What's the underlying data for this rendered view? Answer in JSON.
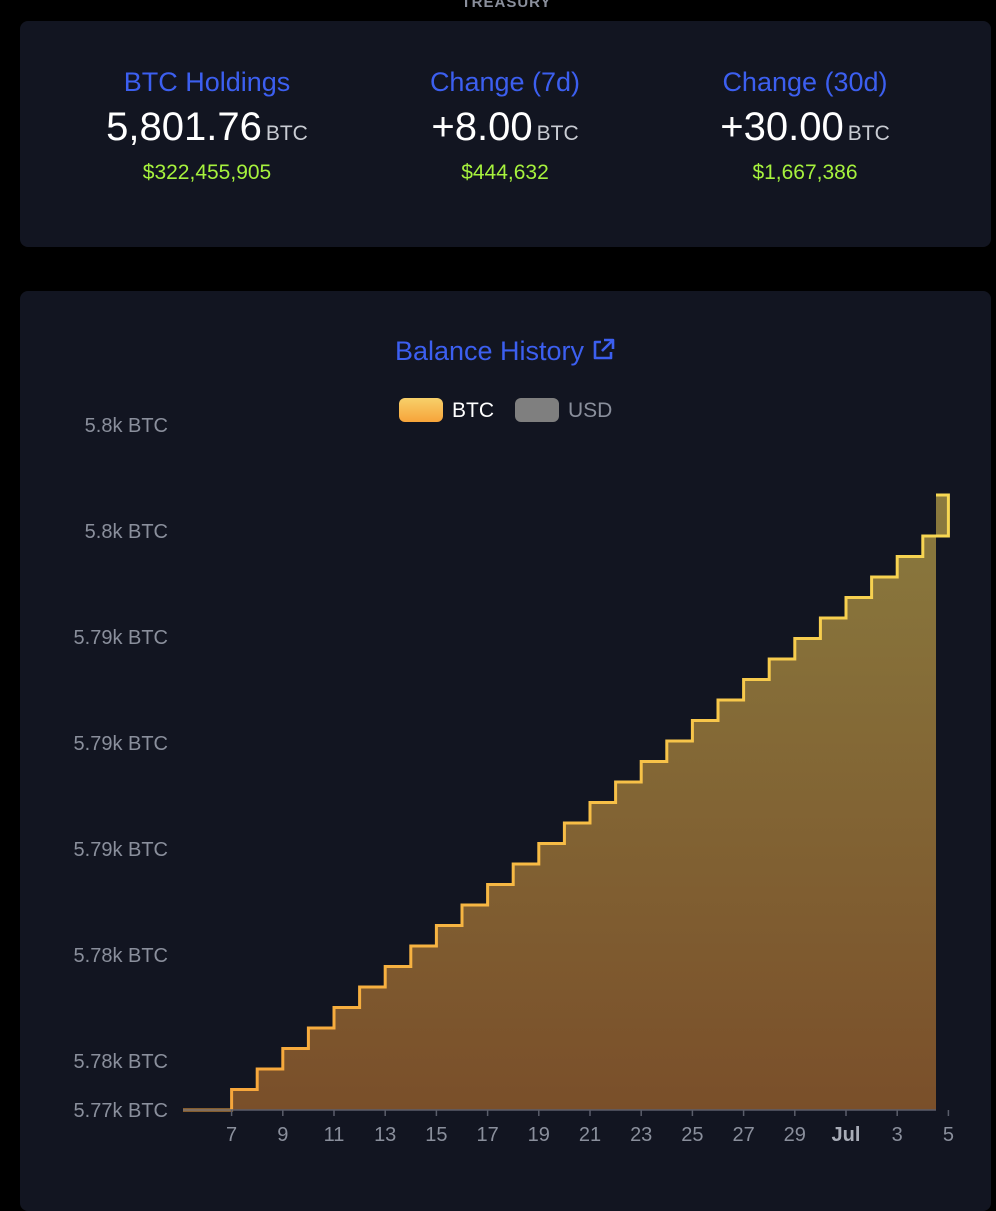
{
  "section_label": "TREASURY",
  "stats": [
    {
      "title": "BTC Holdings",
      "value": "5,801.76",
      "unit": "BTC",
      "usd": "$322,455,905"
    },
    {
      "title": "Change (7d)",
      "value": "+8.00",
      "unit": "BTC",
      "usd": "$444,632"
    },
    {
      "title": "Change (30d)",
      "value": "+30.00",
      "unit": "BTC",
      "usd": "$1,667,386"
    }
  ],
  "colors": {
    "accent": "#3c5ff0",
    "usd_text": "#a6f23d",
    "btc_line": "#f5c542",
    "usd_legend": "#7f7f7f",
    "card_bg": "#121521"
  },
  "chart_title": "Balance History",
  "chart_title_icon": "external-link-icon",
  "legend": [
    {
      "name": "BTC",
      "color": "#f5c542"
    },
    {
      "name": "USD",
      "color": "#7f7f7f"
    }
  ],
  "chart_data": {
    "type": "area",
    "step": true,
    "title": "Balance History",
    "y_tick_labels": [
      "5.8k BTC",
      "5.8k BTC",
      "5.79k BTC",
      "5.79k BTC",
      "5.79k BTC",
      "5.78k BTC",
      "5.78k BTC",
      "5.77k BTC"
    ],
    "x_tick_labels": [
      "7",
      "9",
      "11",
      "13",
      "15",
      "17",
      "19",
      "21",
      "23",
      "25",
      "27",
      "29",
      "Jul",
      "3",
      "5"
    ],
    "x": [
      "Jun 6",
      "Jun 7",
      "Jun 8",
      "Jun 9",
      "Jun 10",
      "Jun 11",
      "Jun 12",
      "Jun 13",
      "Jun 14",
      "Jun 15",
      "Jun 16",
      "Jun 17",
      "Jun 18",
      "Jun 19",
      "Jun 20",
      "Jun 21",
      "Jun 22",
      "Jun 23",
      "Jun 24",
      "Jun 25",
      "Jun 26",
      "Jun 27",
      "Jun 28",
      "Jun 29",
      "Jun 30",
      "Jul 1",
      "Jul 2",
      "Jul 3",
      "Jul 4",
      "Jul 5"
    ],
    "series": [
      {
        "name": "BTC",
        "values": [
          5771.76,
          5772.76,
          5773.76,
          5774.76,
          5775.76,
          5776.76,
          5777.76,
          5778.76,
          5779.76,
          5780.76,
          5781.76,
          5782.76,
          5783.76,
          5784.76,
          5785.76,
          5786.76,
          5787.76,
          5788.76,
          5789.76,
          5790.76,
          5791.76,
          5792.76,
          5793.76,
          5794.76,
          5795.76,
          5796.76,
          5797.76,
          5798.76,
          5799.76,
          5801.76
        ]
      }
    ],
    "ylim": [
      5771.76,
      5801.76
    ],
    "grid": false,
    "legend_position": "top-center"
  }
}
